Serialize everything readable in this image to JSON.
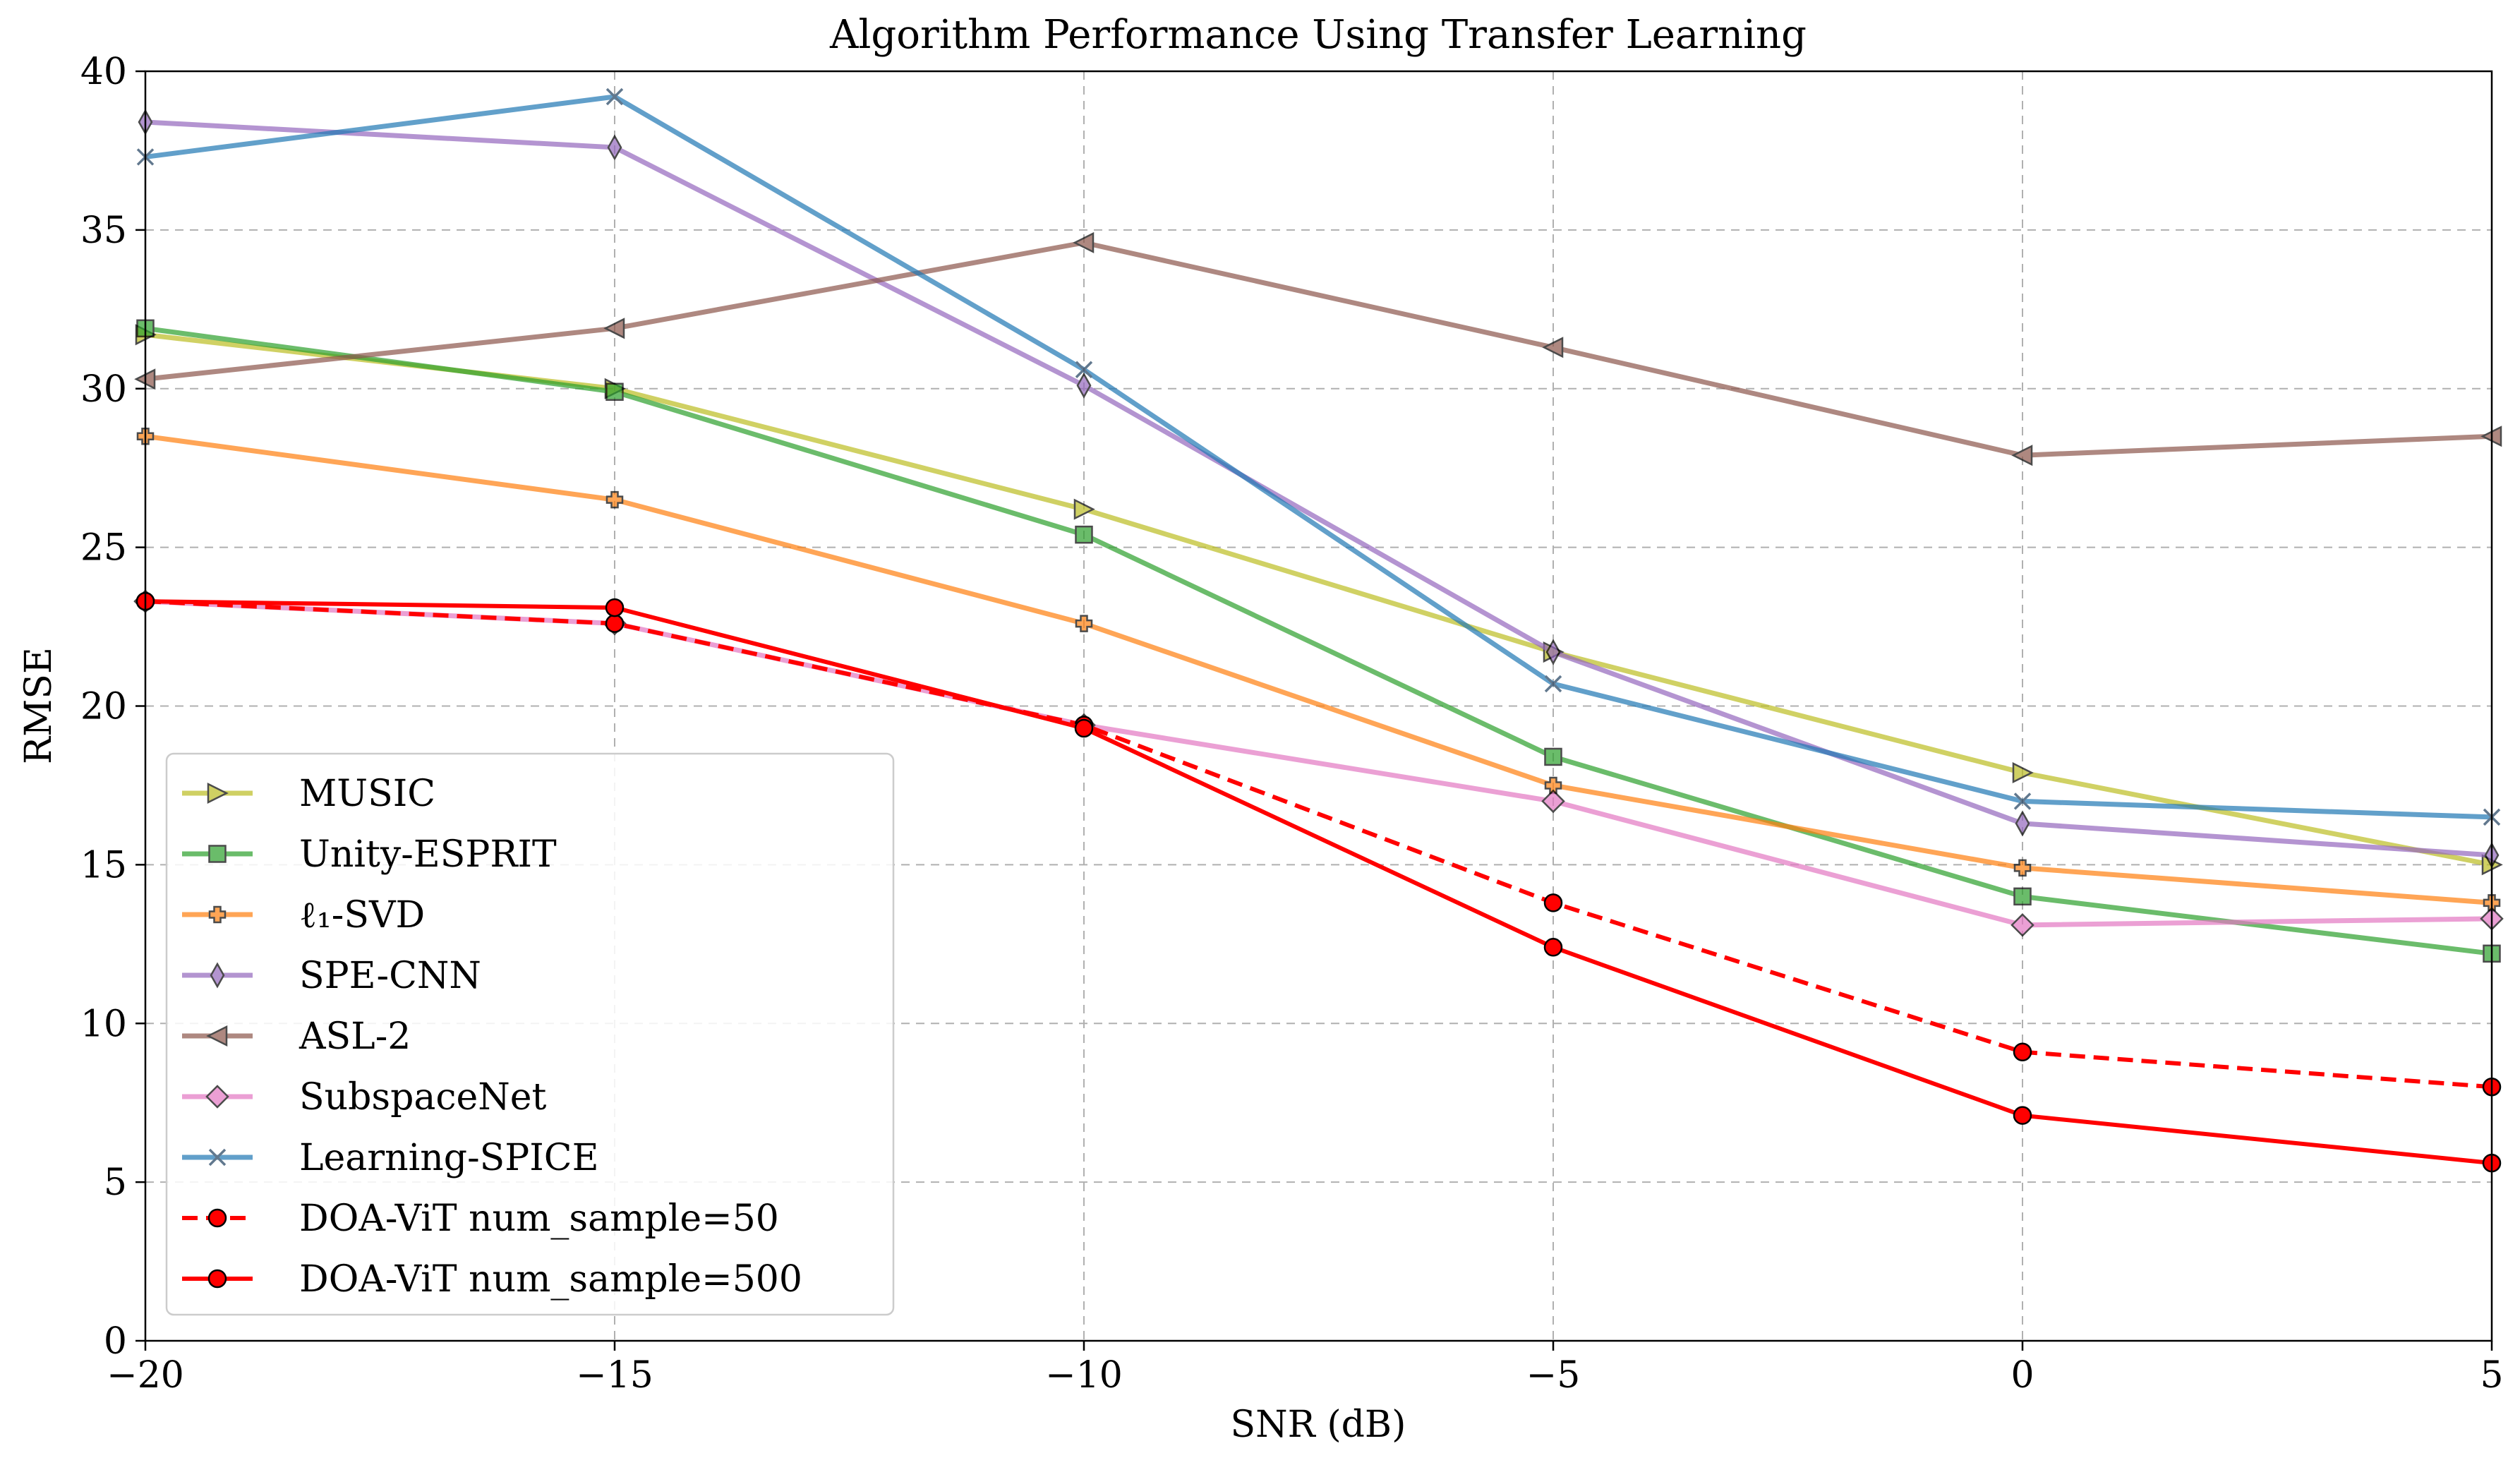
{
  "chart_data": {
    "type": "line",
    "title": "Algorithm Performance Using Transfer Learning",
    "xlabel": "SNR (dB)",
    "ylabel": "RMSE",
    "xlim": [
      -20,
      5
    ],
    "ylim": [
      0,
      40
    ],
    "grid": true,
    "legend_position": "lower-left",
    "x": [
      -20,
      -15,
      -10,
      -5,
      0,
      5
    ],
    "xticks": [
      -20,
      -15,
      -10,
      -5,
      0,
      5
    ],
    "xtick_labels": [
      "−20",
      "−15",
      "−10",
      "−5",
      "0",
      "5"
    ],
    "yticks": [
      0,
      5,
      10,
      15,
      20,
      25,
      30,
      35,
      40
    ],
    "ytick_labels": [
      "0",
      "5",
      "10",
      "15",
      "20",
      "25",
      "30",
      "35",
      "40"
    ],
    "series": [
      {
        "name": "MUSIC",
        "color": "#bcbd22",
        "marker": "triangle-right",
        "dashed": false,
        "alpha": 0.7,
        "values": [
          31.7,
          30.0,
          26.2,
          21.7,
          17.9,
          15.0
        ]
      },
      {
        "name": "Unity-ESPRIT",
        "color": "#2ca02c",
        "marker": "square",
        "dashed": false,
        "alpha": 0.7,
        "values": [
          31.9,
          29.9,
          25.4,
          18.4,
          14.0,
          12.2
        ]
      },
      {
        "name": "ℓ₁-SVD",
        "color": "#ff7f0e",
        "marker": "plus",
        "dashed": false,
        "alpha": 0.7,
        "values": [
          28.5,
          26.5,
          22.6,
          17.5,
          14.9,
          13.8
        ]
      },
      {
        "name": "SPE-CNN",
        "color": "#9467bd",
        "marker": "thin-diamond",
        "dashed": false,
        "alpha": 0.7,
        "values": [
          38.4,
          37.6,
          30.1,
          21.7,
          16.3,
          15.3
        ]
      },
      {
        "name": "ASL-2",
        "color": "#8c564b",
        "marker": "triangle-left",
        "dashed": false,
        "alpha": 0.7,
        "values": [
          30.3,
          31.9,
          34.6,
          31.3,
          27.9,
          28.5
        ]
      },
      {
        "name": "SubspaceNet",
        "color": "#e377c2",
        "marker": "diamond",
        "dashed": false,
        "alpha": 0.7,
        "values": [
          23.3,
          22.6,
          19.4,
          17.0,
          13.1,
          13.3
        ]
      },
      {
        "name": "Learning-SPICE",
        "color": "#1f77b4",
        "marker": "x",
        "dashed": false,
        "alpha": 0.7,
        "values": [
          37.3,
          39.2,
          30.6,
          20.7,
          17.0,
          16.5
        ]
      },
      {
        "name": "DOA-ViT  num_sample=50",
        "color": "#ff0000",
        "marker": "circle",
        "dashed": true,
        "alpha": 1.0,
        "values": [
          23.3,
          22.6,
          19.4,
          13.8,
          9.1,
          8.0
        ]
      },
      {
        "name": "DOA-ViT  num_sample=500",
        "color": "#ff0000",
        "marker": "circle",
        "dashed": false,
        "alpha": 1.0,
        "values": [
          23.3,
          23.1,
          19.3,
          12.4,
          7.1,
          5.6
        ]
      }
    ]
  }
}
